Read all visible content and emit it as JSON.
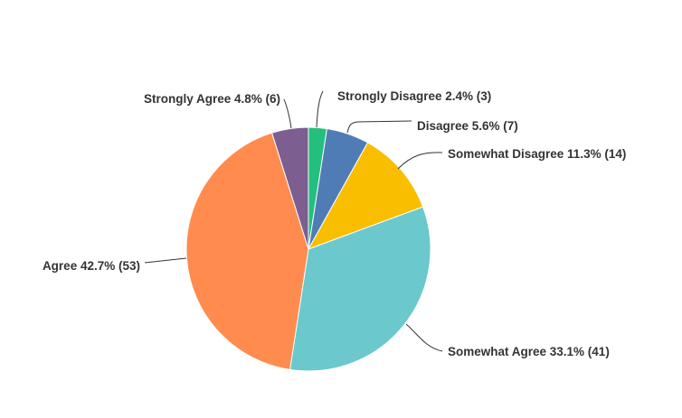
{
  "chart_data": {
    "type": "pie",
    "start": "12 o'clock, clockwise",
    "slices": [
      {
        "label": "Strongly Disagree",
        "percent": 2.4,
        "count": 3,
        "color": "#22bf7e"
      },
      {
        "label": "Disagree",
        "percent": 5.6,
        "count": 7,
        "color": "#507cb6"
      },
      {
        "label": "Somewhat Disagree",
        "percent": 11.3,
        "count": 14,
        "color": "#f9be00"
      },
      {
        "label": "Somewhat Agree",
        "percent": 33.1,
        "count": 41,
        "color": "#6bc8cd"
      },
      {
        "label": "Agree",
        "percent": 42.7,
        "count": 53,
        "color": "#ff8b4f"
      },
      {
        "label": "Strongly Agree",
        "percent": 4.8,
        "count": 6,
        "color": "#7d5e90"
      }
    ]
  }
}
